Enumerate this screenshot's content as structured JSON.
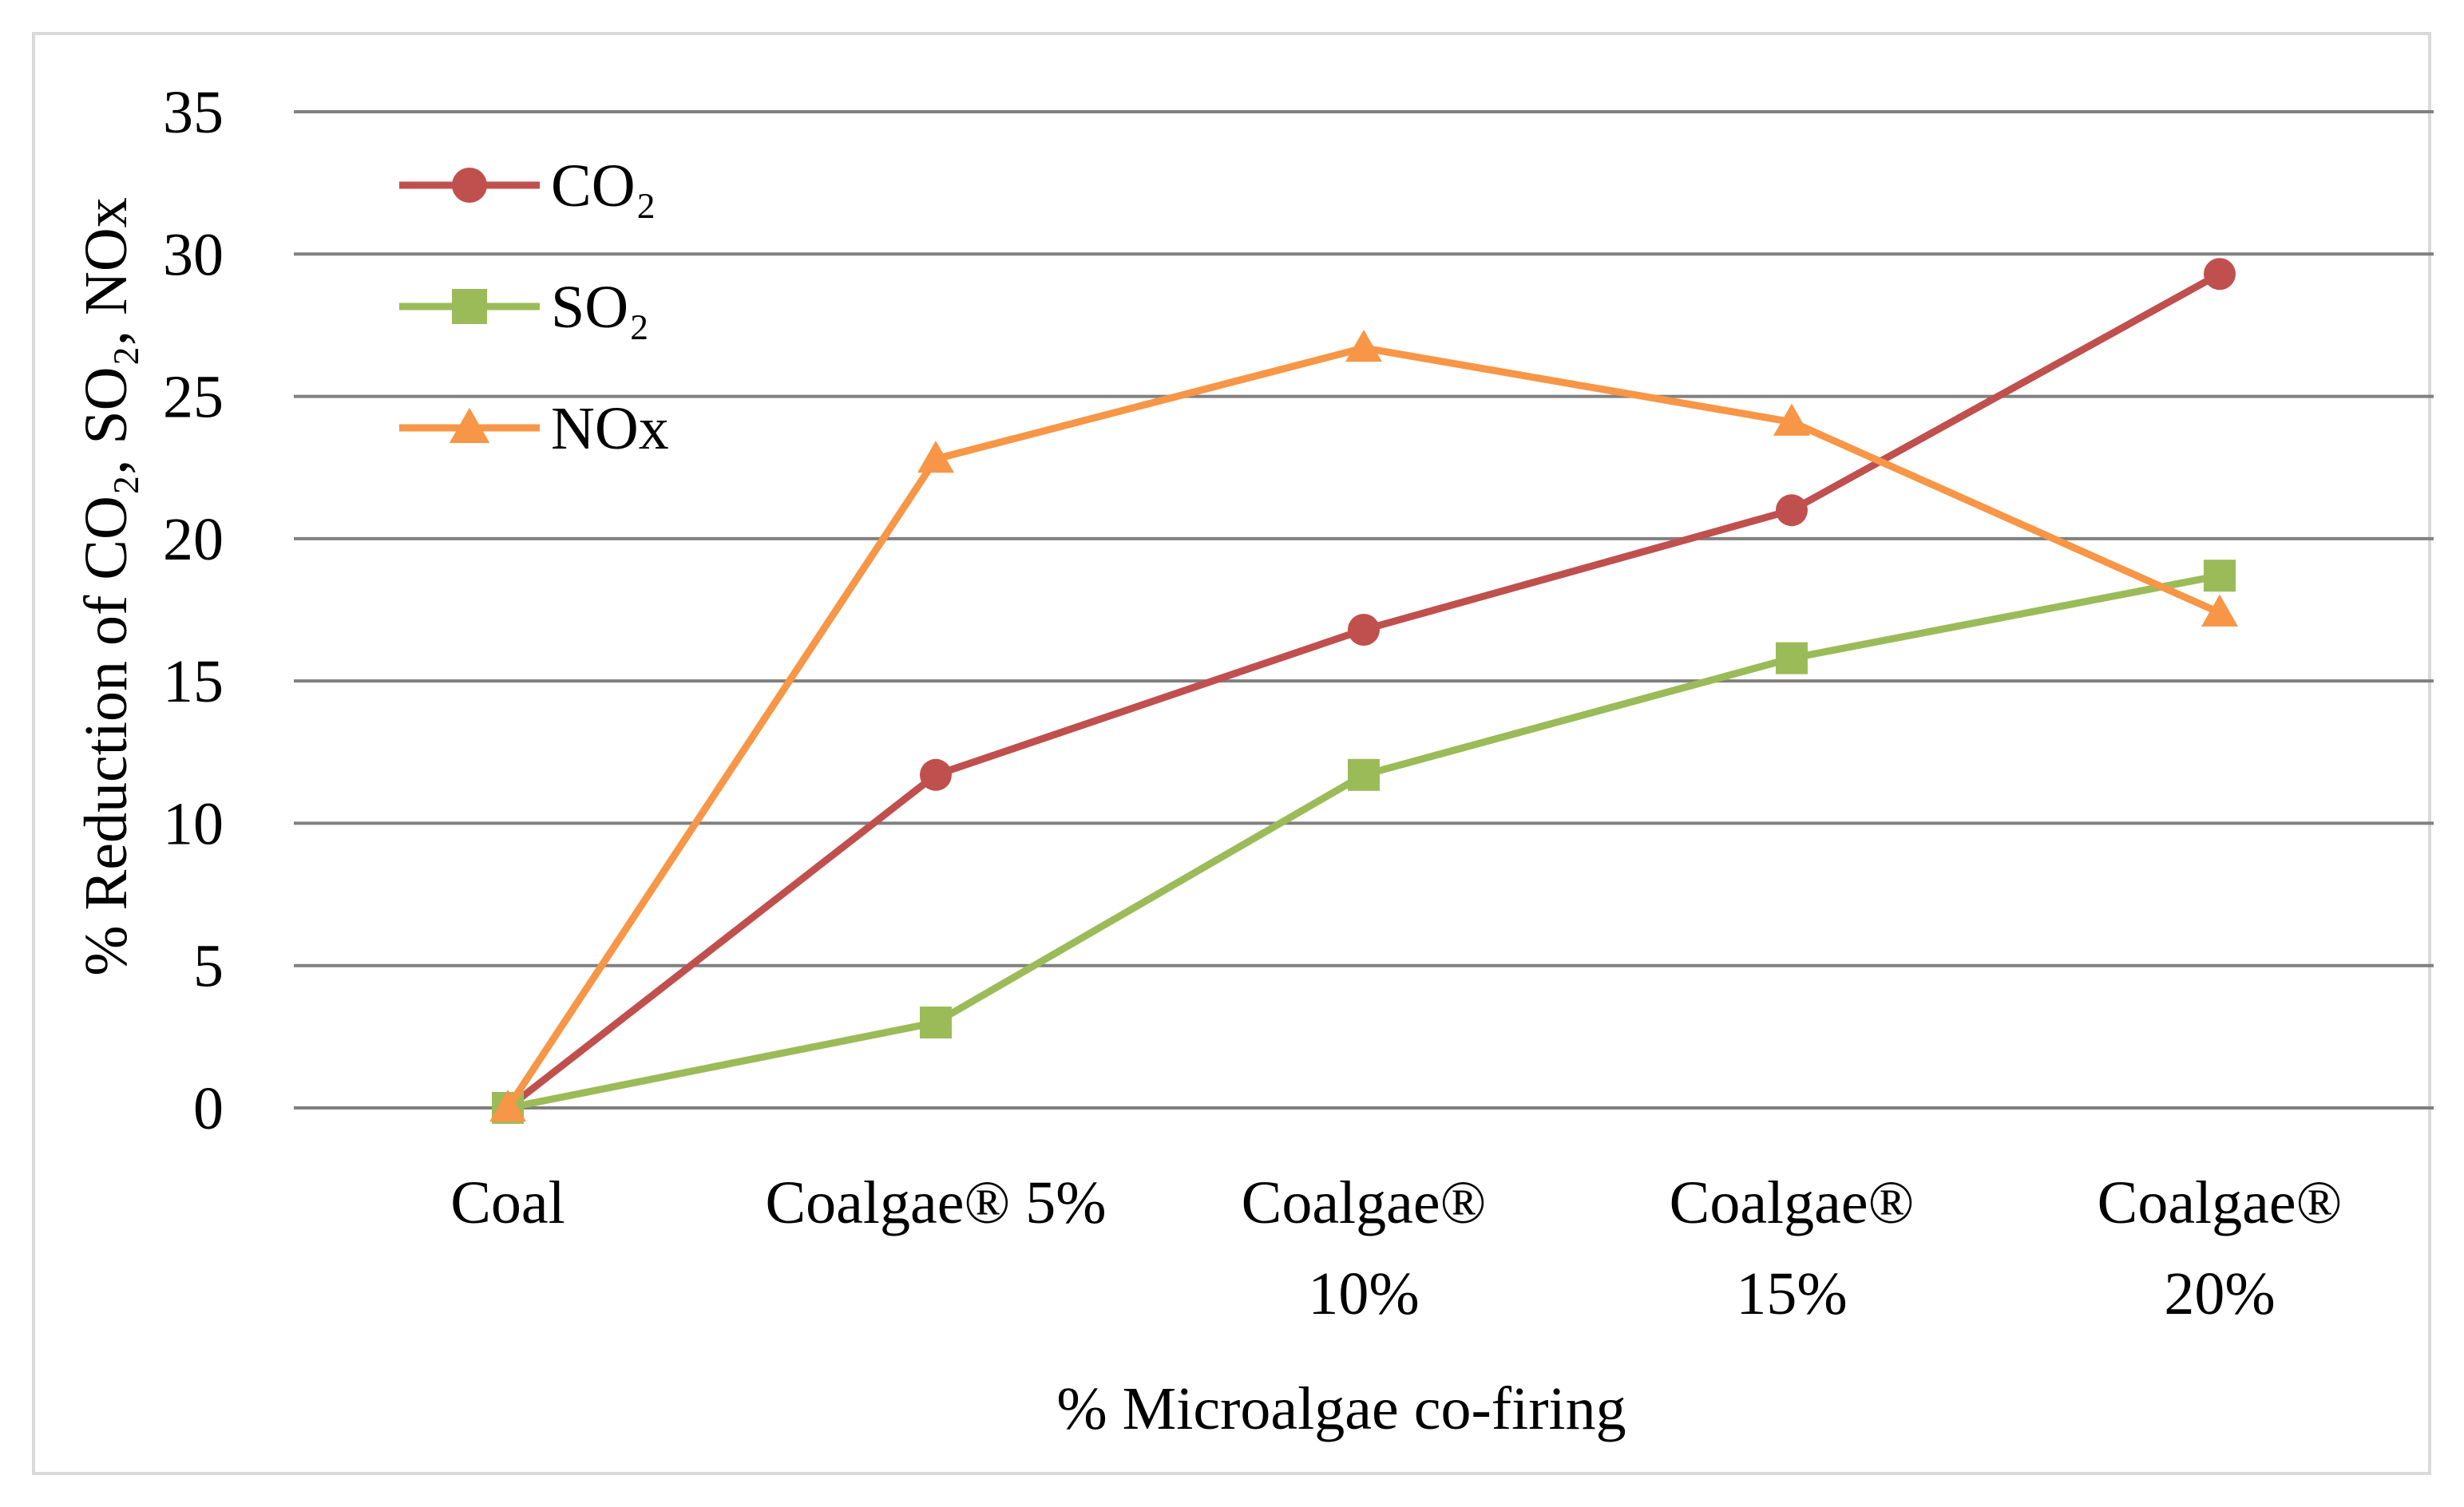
{
  "chart_data": {
    "type": "line",
    "title": "",
    "xlabel": "% Microalgae co-firing",
    "ylabel": "% Reduction of CO₂, SO₂, NOx",
    "ylim": [
      0,
      35
    ],
    "yticks": [
      0,
      5,
      10,
      15,
      20,
      25,
      30,
      35
    ],
    "grid": true,
    "legend_position": "top-left",
    "categories": [
      [
        "Coal"
      ],
      [
        "Coalgae® 5%"
      ],
      [
        "Coalgae®",
        "10%"
      ],
      [
        "Coalgae®",
        "15%"
      ],
      [
        "Coalgae®",
        "20%"
      ]
    ],
    "series": [
      {
        "name": "CO₂",
        "marker": "circle",
        "color": "#c0504d",
        "values": [
          0,
          11.7,
          16.8,
          21.0,
          29.3
        ]
      },
      {
        "name": "SO₂",
        "marker": "square",
        "color": "#9bbb59",
        "values": [
          0,
          3.0,
          11.7,
          15.8,
          18.7
        ]
      },
      {
        "name": "NOx",
        "marker": "triangle",
        "color": "#f79646",
        "values": [
          0,
          22.8,
          26.7,
          24.1,
          17.4
        ]
      }
    ],
    "colors": {
      "grid": "#808080",
      "frame": "#d9d9d9"
    }
  }
}
